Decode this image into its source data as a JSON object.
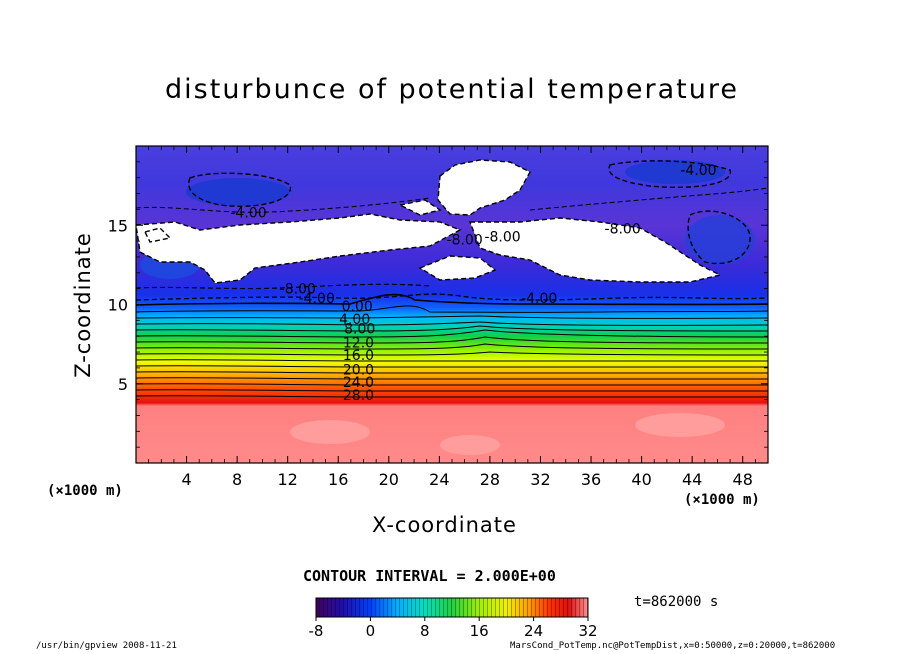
{
  "chart_data": {
    "type": "heatmap",
    "title": "disturbunce of potential temperature",
    "xlabel": "X-coordinate",
    "ylabel": "Z-coordinate",
    "x_unit": "(×1000 m)",
    "xlim": [
      0,
      50
    ],
    "ylim": [
      0,
      20
    ],
    "x_ticks": [
      4,
      8,
      12,
      16,
      20,
      24,
      28,
      32,
      36,
      40,
      44,
      48
    ],
    "y_ticks": [
      5,
      10,
      15
    ],
    "contour_interval": "CONTOUR INTERVAL = 2.000E+00",
    "contour_labels": [
      {
        "text": "-4.00",
        "x": 44.5,
        "z": 18.5
      },
      {
        "text": "-4.00",
        "x": 8.9,
        "z": 15.8
      },
      {
        "text": "-8.00",
        "x": 38.5,
        "z": 14.8
      },
      {
        "text": "-8.00",
        "x": 26.0,
        "z": 14.1
      },
      {
        "text": "-8.00",
        "x": 29.0,
        "z": 14.3
      },
      {
        "text": "-8.00",
        "x": 12.8,
        "z": 11.0
      },
      {
        "text": "-4.00",
        "x": 14.3,
        "z": 10.4
      },
      {
        "text": "-4.00",
        "x": 31.9,
        "z": 10.4
      },
      {
        "text": "0.00",
        "x": 17.5,
        "z": 9.9
      },
      {
        "text": "4.00",
        "x": 17.3,
        "z": 9.1
      },
      {
        "text": "8.00",
        "x": 17.7,
        "z": 8.5
      },
      {
        "text": "12.0",
        "x": 17.6,
        "z": 7.6
      },
      {
        "text": "16.0",
        "x": 17.6,
        "z": 6.8
      },
      {
        "text": "20.0",
        "x": 17.6,
        "z": 5.9
      },
      {
        "text": "24.0",
        "x": 17.6,
        "z": 5.1
      },
      {
        "text": "28.0",
        "x": 17.6,
        "z": 4.3
      }
    ],
    "colorbar": {
      "ticks": [
        -8,
        0,
        8,
        16,
        24,
        32
      ],
      "min": -8,
      "max": 32
    },
    "time": "t=862000 s"
  },
  "footer": {
    "left": "/usr/bin/gpview   2008-11-21",
    "right": "MarsCond_PotTemp.nc@PotTempDist,x=0:50000,z=0:20000,t=862000"
  }
}
